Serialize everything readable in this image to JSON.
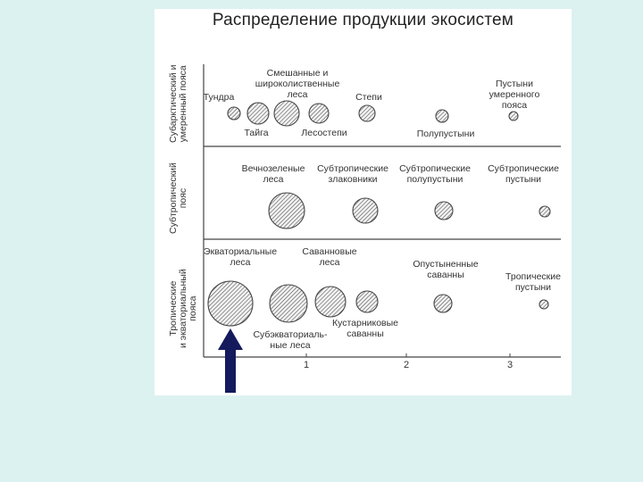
{
  "title": "Распределение продукции экосистем",
  "zones": [
    {
      "line1": "Субарктический и",
      "line2": "умеренный пояса"
    },
    {
      "line1": "Субтропический",
      "line2": "пояс"
    },
    {
      "line1": "Тропические",
      "line2": "и экваториальный",
      "line3": "пояса"
    }
  ],
  "labels": {
    "tundra": "Тундра",
    "mixed_1": "Смешанные и",
    "mixed_2": "широколиственные",
    "mixed_3": "леса",
    "steppes": "Степи",
    "deserts_temp_1": "Пустыни",
    "deserts_temp_2": "умеренного",
    "deserts_temp_3": "пояса",
    "taiga": "Тайга",
    "forest_steppe": "Лесостепи",
    "semideserts": "Полупустыни",
    "evergreen_1": "Вечнозеленые",
    "evergreen_2": "леса",
    "subtrop_grass_1": "Субтропические",
    "subtrop_grass_2": "злаковники",
    "subtrop_semidesert_1": "Субтропические",
    "subtrop_semidesert_2": "полупустыни",
    "subtrop_desert_1": "Субтропические",
    "subtrop_desert_2": "пустыни",
    "equatorial_1": "Экваториальные",
    "equatorial_2": "леса",
    "savanna_forest_1": "Саванновые",
    "savanna_forest_2": "леса",
    "desert_savanna_1": "Опустыненные",
    "desert_savanna_2": "саванны",
    "trop_desert_1": "Тропические",
    "trop_desert_2": "пустыни",
    "subequatorial_1": "Субэкваториаль-",
    "subequatorial_2": "ные леса",
    "shrub_savanna_1": "Кустарниковые",
    "shrub_savanna_2": "саванны"
  },
  "axis_ticks": [
    "1",
    "2",
    "3"
  ],
  "colors": {
    "background": "#dcf2f0",
    "panel": "#ffffff",
    "arrow": "#141a5c"
  }
}
